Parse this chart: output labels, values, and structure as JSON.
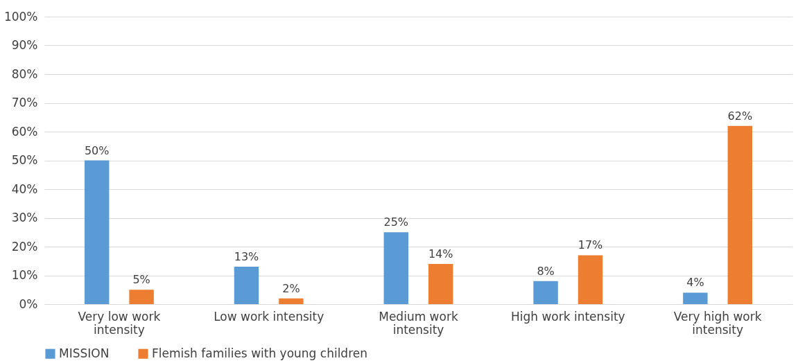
{
  "chart_data": {
    "type": "bar",
    "categories": [
      "Very low work intensity",
      "Low work intensity",
      "Medium work intensity",
      "High work intensity",
      "Very high work intensity"
    ],
    "series": [
      {
        "name": "MISSION",
        "color": "#5b9bd5",
        "values": [
          50,
          13,
          25,
          8,
          4
        ],
        "value_labels": [
          "50%",
          "13%",
          "25%",
          "8%",
          "4%"
        ]
      },
      {
        "name": "Flemish families with young children",
        "color": "#ed7d31",
        "values": [
          5,
          2,
          14,
          17,
          62
        ],
        "value_labels": [
          "5%",
          "2%",
          "14%",
          "17%",
          "62%"
        ]
      }
    ],
    "ylim": [
      0,
      100
    ],
    "yticks": [
      {
        "value": 0,
        "label": "0%"
      },
      {
        "value": 10,
        "label": "10%"
      },
      {
        "value": 20,
        "label": "20%"
      },
      {
        "value": 30,
        "label": "30%"
      },
      {
        "value": 40,
        "label": "40%"
      },
      {
        "value": 50,
        "label": "50%"
      },
      {
        "value": 60,
        "label": "60%"
      },
      {
        "value": 70,
        "label": "70%"
      },
      {
        "value": 80,
        "label": "80%"
      },
      {
        "value": 90,
        "label": "90%"
      },
      {
        "value": 100,
        "label": "100%"
      }
    ],
    "grid": "y",
    "legend": "bottom"
  }
}
